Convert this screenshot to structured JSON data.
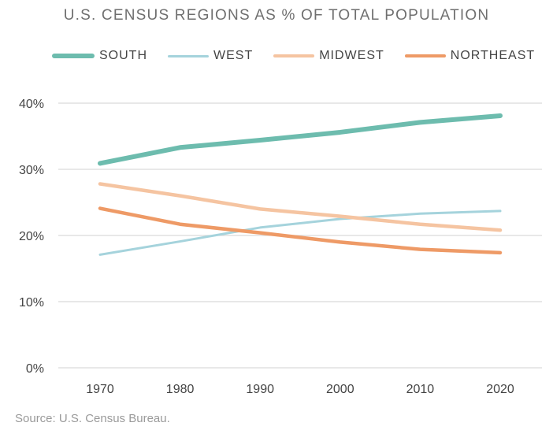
{
  "chart_data": {
    "type": "line",
    "title": "U.S. CENSUS REGIONS AS % OF TOTAL POPULATION",
    "categories": [
      "1970",
      "1980",
      "1990",
      "2000",
      "2010",
      "2020"
    ],
    "ylim": [
      0,
      40
    ],
    "yticks": [
      0,
      10,
      20,
      30,
      40
    ],
    "ytick_labels": [
      "0%",
      "10%",
      "20%",
      "30%",
      "40%"
    ],
    "grid": true,
    "legend_position": "top",
    "series": [
      {
        "name": "SOUTH",
        "color": "#6dbcae",
        "values": [
          30.9,
          33.3,
          34.4,
          35.6,
          37.1,
          38.1
        ]
      },
      {
        "name": "WEST",
        "color": "#a5d3dc",
        "values": [
          17.1,
          19.1,
          21.2,
          22.5,
          23.3,
          23.7
        ]
      },
      {
        "name": "MIDWEST",
        "color": "#f5c4a1",
        "values": [
          27.8,
          26.0,
          24.0,
          22.9,
          21.7,
          20.8
        ]
      },
      {
        "name": "NORTHEAST",
        "color": "#ee9a66",
        "values": [
          24.1,
          21.7,
          20.4,
          19.0,
          17.9,
          17.4
        ]
      }
    ],
    "source": "Source: U.S. Census Bureau."
  }
}
